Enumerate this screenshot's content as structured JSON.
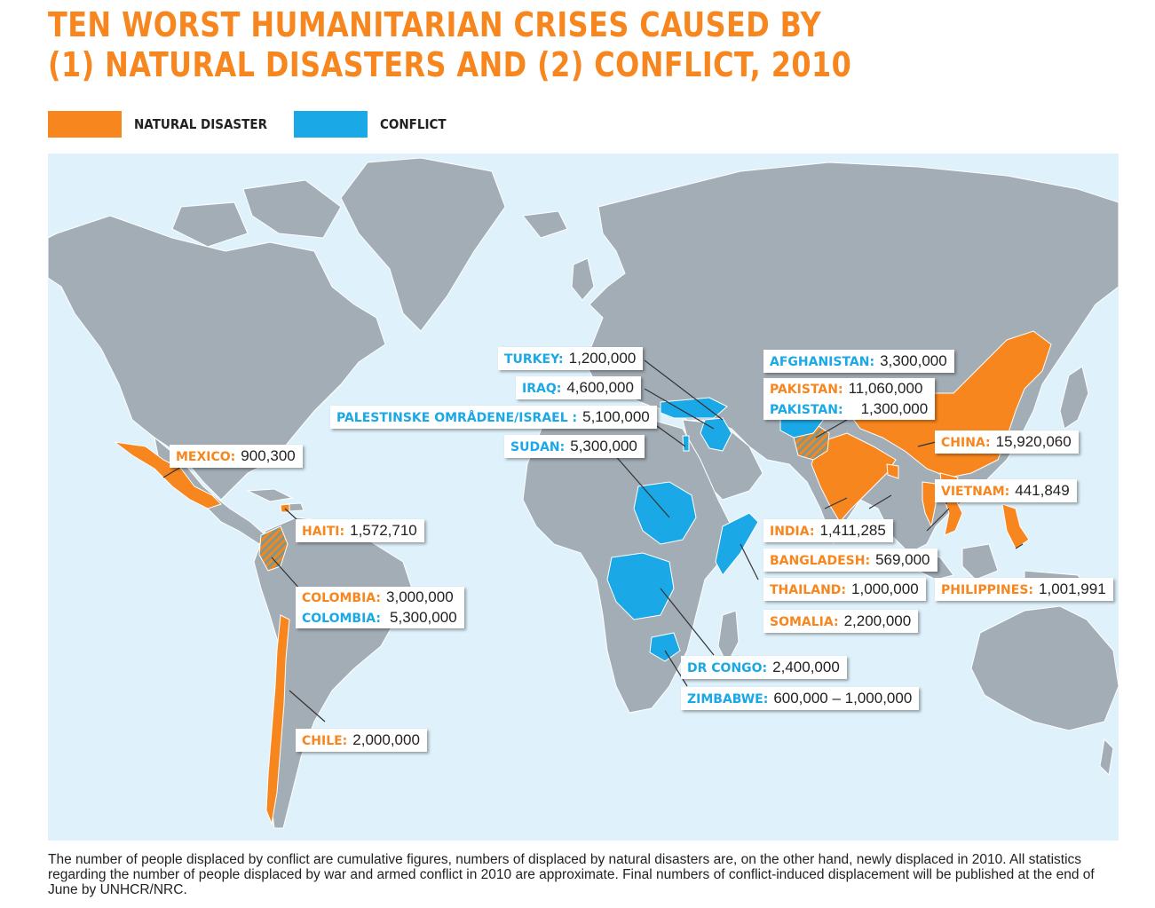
{
  "title": {
    "line1": "TEN WORST HUMANITARIAN CRISES CAUSED BY",
    "line2": "(1) NATURAL DISASTERS AND (2) CONFLICT, 2010"
  },
  "legend": {
    "natural": {
      "label": "NATURAL DISASTER",
      "color": "#f7861f"
    },
    "conflict": {
      "label": "CONFLICT",
      "color": "#1aa8e6"
    }
  },
  "colors": {
    "ocean": "#dff1fa",
    "land": "#a3adb6",
    "border": "#ffffff"
  },
  "labels": {
    "turkey": {
      "name": "TURKEY:",
      "value": "1,200,000",
      "type": "conflict"
    },
    "iraq": {
      "name": "IRAQ:",
      "value": "4,600,000",
      "type": "conflict"
    },
    "palestine": {
      "name": "PALESTINSKE OMRÅDENE/ISRAEL :",
      "value": "5,100,000",
      "type": "conflict"
    },
    "sudan": {
      "name": "SUDAN:",
      "value": "5,300,000",
      "type": "conflict"
    },
    "afghanistan": {
      "name": "AFGHANISTAN:",
      "value": "3,300,000",
      "type": "conflict"
    },
    "pakistan_nat": {
      "name": "PAKISTAN:",
      "value": "11,060,000",
      "type": "natural"
    },
    "pakistan_con": {
      "name": "PAKISTAN:",
      "value": "1,300,000",
      "type": "conflict"
    },
    "china": {
      "name": "CHINA:",
      "value": "15,920,060",
      "type": "natural"
    },
    "vietnam": {
      "name": "VIETNAM:",
      "value": "441,849",
      "type": "natural"
    },
    "mexico": {
      "name": "MEXICO:",
      "value": "900,300",
      "type": "natural"
    },
    "haiti": {
      "name": "HAITI:",
      "value": "1,572,710",
      "type": "natural"
    },
    "colombia_nat": {
      "name": "COLOMBIA:",
      "value": "3,000,000",
      "type": "natural"
    },
    "colombia_con": {
      "name": "COLOMBIA:",
      "value": "5,300,000",
      "type": "conflict"
    },
    "india": {
      "name": "INDIA:",
      "value": "1,411,285",
      "type": "natural"
    },
    "bangladesh": {
      "name": "BANGLADESH:",
      "value": "569,000",
      "type": "natural"
    },
    "thailand": {
      "name": "THAILAND:",
      "value": "1,000,000",
      "type": "natural"
    },
    "somalia": {
      "name": "SOMALIA:",
      "value": "2,200,000",
      "type": "natural"
    },
    "philippines": {
      "name": "PHILIPPINES:",
      "value": "1,001,991",
      "type": "natural"
    },
    "drcongo": {
      "name": "DR CONGO:",
      "value": "2,400,000",
      "type": "conflict"
    },
    "zimbabwe": {
      "name": "ZIMBABWE:",
      "value": "600,000 – 1,000,000",
      "type": "conflict"
    },
    "chile": {
      "name": "CHILE:",
      "value": "2,000,000",
      "type": "natural"
    }
  },
  "footnote": "The number of people displaced by conflict are cumulative figures, numbers of displaced by natural disasters are, on the other hand, newly displaced in 2010. All statistics regarding the number of people displaced by war and armed conflict in 2010 are approximate. Final numbers of conflict-induced displacement will be published at the end of June by UNHCR/NRC."
}
